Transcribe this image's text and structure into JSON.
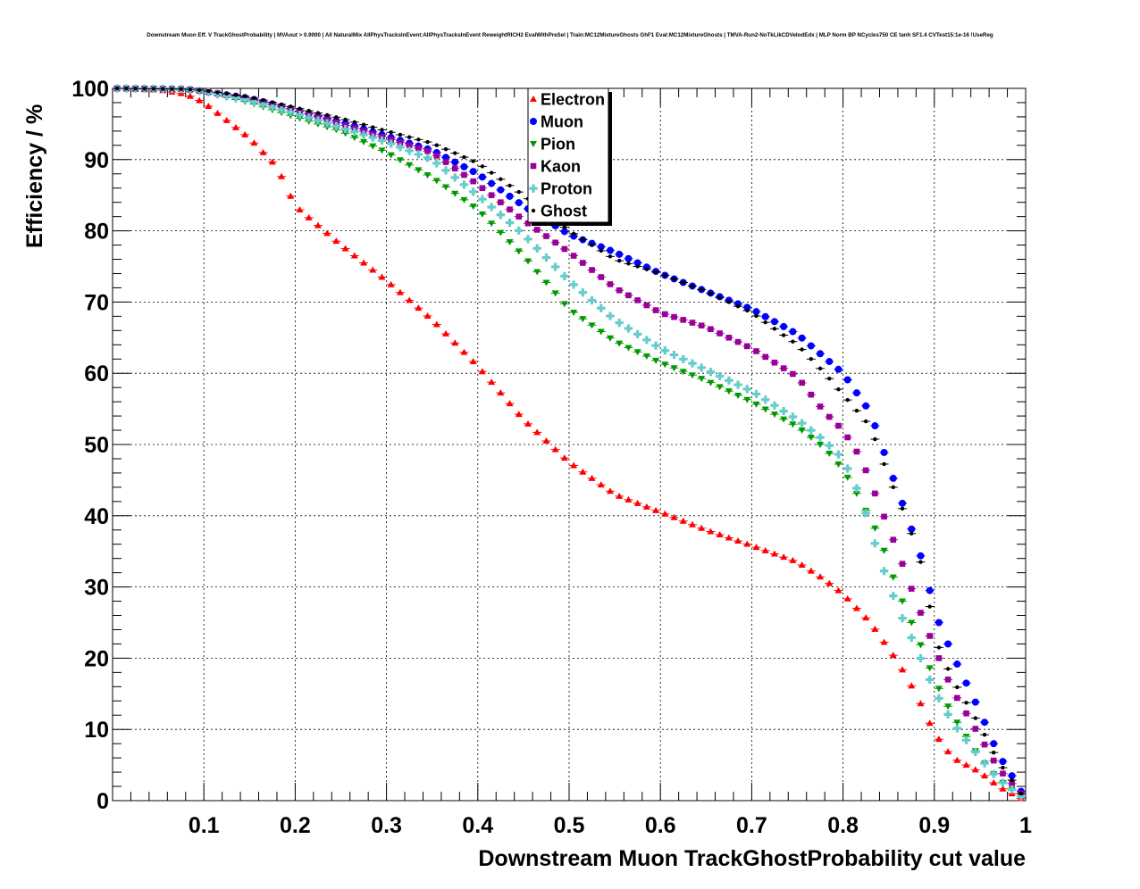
{
  "chart_data": {
    "type": "scatter",
    "title": "Downstream Muon Eff. V TrackGhostProbability | MVAout > 0.9000 | All NaturalMix AllPhysTracksInEvent:AllPhysTracksInEvent ReweightRICH2 EvalWithPreSel | Train:MC12MixtureGhosts GhF1 Eval:MC12MixtureGhosts | TMVA-Run2-NoTkLikCDVelodEdx | MLP Norm BP NCycles750 CE tanh SF1.4 CVTest15:1e-16 !UseReg",
    "xlabel": "Downstream Muon TrackGhostProbability cut value",
    "ylabel": "Efficiency / %",
    "xlim": [
      0,
      1
    ],
    "ylim": [
      0,
      100
    ],
    "grid": true,
    "legend_position": "top-center",
    "x_tick_labels": [
      "0.1",
      "0.2",
      "0.3",
      "0.4",
      "0.5",
      "0.6",
      "0.7",
      "0.8",
      "0.9",
      "1"
    ],
    "y_tick_labels": [
      "0",
      "10",
      "20",
      "30",
      "40",
      "50",
      "60",
      "70",
      "80",
      "90",
      "100"
    ],
    "x_ticks": [
      0.1,
      0.2,
      0.3,
      0.4,
      0.5,
      0.6,
      0.7,
      0.8,
      0.9,
      1.0
    ],
    "y_ticks": [
      0,
      10,
      20,
      30,
      40,
      50,
      60,
      70,
      80,
      90,
      100
    ],
    "x_start": 0.005,
    "x_step": 0.01,
    "n_points": 100,
    "series": [
      {
        "name": "Electron",
        "color": "#ff0000",
        "marker": "triangle-up",
        "anchors": [
          [
            0.005,
            100
          ],
          [
            0.05,
            99.8
          ],
          [
            0.08,
            99.2
          ],
          [
            0.1,
            98
          ],
          [
            0.12,
            96
          ],
          [
            0.15,
            93
          ],
          [
            0.18,
            89
          ],
          [
            0.2,
            83.5
          ],
          [
            0.25,
            78
          ],
          [
            0.3,
            73
          ],
          [
            0.35,
            67.5
          ],
          [
            0.4,
            61
          ],
          [
            0.45,
            53.5
          ],
          [
            0.5,
            47.5
          ],
          [
            0.55,
            43
          ],
          [
            0.6,
            40.5
          ],
          [
            0.65,
            38
          ],
          [
            0.7,
            35.8
          ],
          [
            0.75,
            33.5
          ],
          [
            0.78,
            31
          ],
          [
            0.8,
            29
          ],
          [
            0.83,
            25
          ],
          [
            0.86,
            19.5
          ],
          [
            0.88,
            15
          ],
          [
            0.9,
            9.5
          ],
          [
            0.92,
            6
          ],
          [
            0.95,
            4
          ],
          [
            0.97,
            2
          ],
          [
            0.995,
            0.3
          ]
        ]
      },
      {
        "name": "Muon",
        "color": "#0000ff",
        "marker": "circle",
        "anchors": [
          [
            0.005,
            100
          ],
          [
            0.08,
            99.9
          ],
          [
            0.1,
            99.6
          ],
          [
            0.15,
            98.6
          ],
          [
            0.2,
            97
          ],
          [
            0.25,
            95.3
          ],
          [
            0.3,
            93.3
          ],
          [
            0.35,
            91.3
          ],
          [
            0.4,
            88
          ],
          [
            0.45,
            83.5
          ],
          [
            0.5,
            79.5
          ],
          [
            0.55,
            77
          ],
          [
            0.6,
            74
          ],
          [
            0.65,
            71.5
          ],
          [
            0.7,
            69
          ],
          [
            0.75,
            65.5
          ],
          [
            0.8,
            60
          ],
          [
            0.83,
            54.5
          ],
          [
            0.85,
            47
          ],
          [
            0.87,
            40
          ],
          [
            0.89,
            32.5
          ],
          [
            0.9,
            26.5
          ],
          [
            0.92,
            20.5
          ],
          [
            0.95,
            12.5
          ],
          [
            0.97,
            6.5
          ],
          [
            0.99,
            2.5
          ],
          [
            0.995,
            1.3
          ]
        ]
      },
      {
        "name": "Pion",
        "color": "#009900",
        "marker": "triangle-down",
        "anchors": [
          [
            0.005,
            100
          ],
          [
            0.05,
            99.95
          ],
          [
            0.1,
            99.5
          ],
          [
            0.15,
            98
          ],
          [
            0.2,
            96
          ],
          [
            0.25,
            94
          ],
          [
            0.3,
            91
          ],
          [
            0.35,
            87.5
          ],
          [
            0.4,
            83
          ],
          [
            0.45,
            76.5
          ],
          [
            0.5,
            69
          ],
          [
            0.55,
            64.5
          ],
          [
            0.6,
            61.5
          ],
          [
            0.65,
            59
          ],
          [
            0.7,
            56
          ],
          [
            0.75,
            52.5
          ],
          [
            0.78,
            49.5
          ],
          [
            0.8,
            46.5
          ],
          [
            0.82,
            42
          ],
          [
            0.84,
            37
          ],
          [
            0.86,
            29.5
          ],
          [
            0.88,
            23.5
          ],
          [
            0.9,
            17
          ],
          [
            0.92,
            12
          ],
          [
            0.95,
            6
          ],
          [
            0.97,
            3
          ],
          [
            0.995,
            0.6
          ]
        ]
      },
      {
        "name": "Kaon",
        "color": "#990099",
        "marker": "square",
        "anchors": [
          [
            0.005,
            100
          ],
          [
            0.08,
            99.9
          ],
          [
            0.1,
            99.6
          ],
          [
            0.15,
            98.5
          ],
          [
            0.2,
            97
          ],
          [
            0.25,
            95
          ],
          [
            0.3,
            93
          ],
          [
            0.35,
            91
          ],
          [
            0.4,
            86.5
          ],
          [
            0.45,
            81.5
          ],
          [
            0.5,
            77
          ],
          [
            0.55,
            72
          ],
          [
            0.6,
            68.5
          ],
          [
            0.65,
            66.5
          ],
          [
            0.7,
            63.5
          ],
          [
            0.75,
            59.5
          ],
          [
            0.78,
            54.5
          ],
          [
            0.8,
            52
          ],
          [
            0.82,
            48
          ],
          [
            0.84,
            41.5
          ],
          [
            0.86,
            35
          ],
          [
            0.88,
            28
          ],
          [
            0.9,
            21.5
          ],
          [
            0.92,
            15.5
          ],
          [
            0.95,
            9
          ],
          [
            0.97,
            4.5
          ],
          [
            0.995,
            1
          ]
        ]
      },
      {
        "name": "Proton",
        "color": "#66cccc",
        "marker": "cross",
        "anchors": [
          [
            0.005,
            100
          ],
          [
            0.08,
            99.9
          ],
          [
            0.1,
            99.6
          ],
          [
            0.15,
            98.3
          ],
          [
            0.2,
            96.5
          ],
          [
            0.25,
            94.5
          ],
          [
            0.3,
            92.5
          ],
          [
            0.35,
            90
          ],
          [
            0.4,
            85
          ],
          [
            0.45,
            79.5
          ],
          [
            0.5,
            73
          ],
          [
            0.55,
            67.5
          ],
          [
            0.6,
            63.5
          ],
          [
            0.65,
            60.5
          ],
          [
            0.7,
            57.5
          ],
          [
            0.75,
            53.5
          ],
          [
            0.78,
            50.5
          ],
          [
            0.8,
            48
          ],
          [
            0.82,
            42.5
          ],
          [
            0.84,
            34
          ],
          [
            0.86,
            27
          ],
          [
            0.88,
            21.5
          ],
          [
            0.9,
            15.5
          ],
          [
            0.92,
            11
          ],
          [
            0.95,
            6
          ],
          [
            0.97,
            3
          ],
          [
            0.995,
            0.6
          ]
        ]
      },
      {
        "name": "Ghost",
        "color": "#000000",
        "marker": "small-dot",
        "anchors": [
          [
            0.005,
            100
          ],
          [
            0.08,
            99.9
          ],
          [
            0.1,
            99.7
          ],
          [
            0.15,
            98.8
          ],
          [
            0.2,
            97.3
          ],
          [
            0.25,
            95.8
          ],
          [
            0.3,
            94
          ],
          [
            0.35,
            92.3
          ],
          [
            0.4,
            89.5
          ],
          [
            0.45,
            85
          ],
          [
            0.5,
            80
          ],
          [
            0.55,
            76
          ],
          [
            0.6,
            74
          ],
          [
            0.65,
            71.5
          ],
          [
            0.7,
            68.5
          ],
          [
            0.75,
            64
          ],
          [
            0.78,
            60
          ],
          [
            0.8,
            57
          ],
          [
            0.83,
            52.5
          ],
          [
            0.85,
            45.5
          ],
          [
            0.87,
            39.5
          ],
          [
            0.89,
            31.5
          ],
          [
            0.9,
            23
          ],
          [
            0.92,
            17
          ],
          [
            0.95,
            10.5
          ],
          [
            0.97,
            5.5
          ],
          [
            0.99,
            2
          ],
          [
            0.995,
            1
          ]
        ]
      }
    ]
  }
}
